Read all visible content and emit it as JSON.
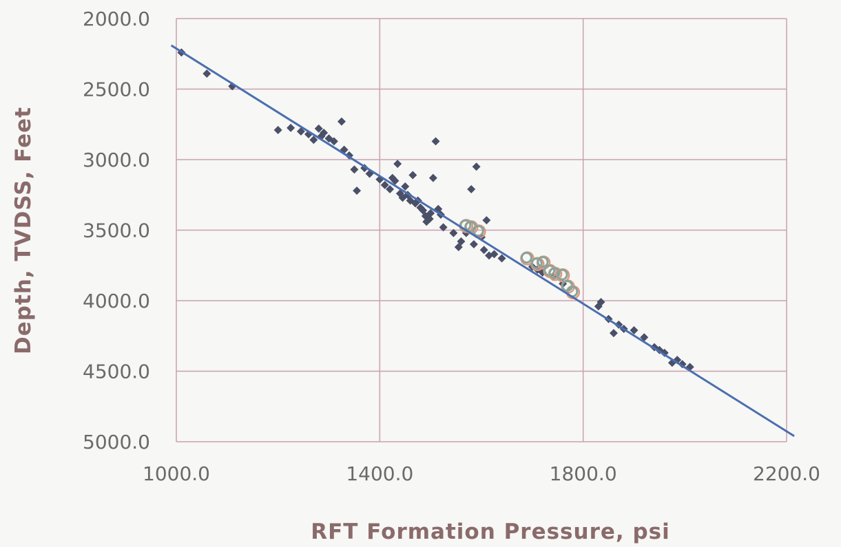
{
  "chart_data": {
    "type": "scatter",
    "xlabel": "RFT Formation Pressure, psi",
    "ylabel": "Depth, TVDSS, Feet",
    "xlim": [
      1000,
      2200
    ],
    "ylim": [
      2000,
      5000
    ],
    "y_inverted": true,
    "x_ticks": [
      "1000.0",
      "1400.0",
      "1800.0",
      "2200.0"
    ],
    "y_ticks": [
      "2000.0",
      "2500.0",
      "3000.0",
      "3500.0",
      "4000.0",
      "4500.0",
      "5000.0"
    ],
    "grid": true,
    "colors": {
      "points": "#4a5068",
      "trend": "#4a6fb0",
      "highlight": "#8aa39a",
      "highlight_ring": "#d89a80",
      "grid": "#c8a0b0",
      "axis_text": "#6a6a6a",
      "title_text": "#8a6a6a"
    },
    "series": [
      {
        "values": [
          [
            1010,
            2240
          ],
          [
            1060,
            2390
          ],
          [
            1110,
            2480
          ],
          [
            1200,
            2790
          ],
          [
            1225,
            2775
          ],
          [
            1245,
            2800
          ],
          [
            1260,
            2820
          ],
          [
            1270,
            2860
          ],
          [
            1280,
            2780
          ],
          [
            1285,
            2835
          ],
          [
            1290,
            2810
          ],
          [
            1300,
            2850
          ],
          [
            1310,
            2870
          ],
          [
            1325,
            2730
          ],
          [
            1330,
            2930
          ],
          [
            1340,
            2970
          ],
          [
            1350,
            3070
          ],
          [
            1355,
            3220
          ],
          [
            1370,
            3060
          ],
          [
            1380,
            3100
          ],
          [
            1400,
            3140
          ],
          [
            1410,
            3180
          ],
          [
            1420,
            3210
          ],
          [
            1425,
            3130
          ],
          [
            1430,
            3150
          ],
          [
            1435,
            3030
          ],
          [
            1440,
            3240
          ],
          [
            1445,
            3270
          ],
          [
            1450,
            3190
          ],
          [
            1455,
            3250
          ],
          [
            1460,
            3290
          ],
          [
            1465,
            3110
          ],
          [
            1470,
            3310
          ],
          [
            1475,
            3290
          ],
          [
            1480,
            3340
          ],
          [
            1485,
            3360
          ],
          [
            1490,
            3400
          ],
          [
            1492,
            3440
          ],
          [
            1498,
            3420
          ],
          [
            1500,
            3380
          ],
          [
            1505,
            3130
          ],
          [
            1510,
            2870
          ],
          [
            1515,
            3350
          ],
          [
            1520,
            3390
          ],
          [
            1525,
            3480
          ],
          [
            1545,
            3520
          ],
          [
            1555,
            3620
          ],
          [
            1560,
            3580
          ],
          [
            1570,
            3520
          ],
          [
            1580,
            3210
          ],
          [
            1585,
            3600
          ],
          [
            1590,
            3050
          ],
          [
            1600,
            3550
          ],
          [
            1605,
            3640
          ],
          [
            1610,
            3430
          ],
          [
            1615,
            3680
          ],
          [
            1625,
            3670
          ],
          [
            1640,
            3700
          ],
          [
            1700,
            3760
          ],
          [
            1710,
            3780
          ],
          [
            1720,
            3800
          ],
          [
            1740,
            3830
          ],
          [
            1760,
            3880
          ],
          [
            1830,
            4040
          ],
          [
            1835,
            4010
          ],
          [
            1850,
            4130
          ],
          [
            1860,
            4230
          ],
          [
            1870,
            4170
          ],
          [
            1880,
            4200
          ],
          [
            1900,
            4210
          ],
          [
            1920,
            4260
          ],
          [
            1940,
            4330
          ],
          [
            1950,
            4350
          ],
          [
            1960,
            4370
          ],
          [
            1975,
            4440
          ],
          [
            1985,
            4420
          ],
          [
            1995,
            4450
          ],
          [
            2010,
            4470
          ]
        ]
      },
      {
        "values": [
          [
            1570,
            3470
          ],
          [
            1580,
            3480
          ],
          [
            1595,
            3510
          ],
          [
            1690,
            3700
          ],
          [
            1710,
            3740
          ],
          [
            1722,
            3730
          ],
          [
            1735,
            3790
          ],
          [
            1745,
            3810
          ],
          [
            1760,
            3820
          ],
          [
            1770,
            3900
          ],
          [
            1780,
            3940
          ]
        ]
      }
    ],
    "trend_line": {
      "from": [
        990,
        2190
      ],
      "to": [
        2215,
        4960
      ]
    }
  }
}
